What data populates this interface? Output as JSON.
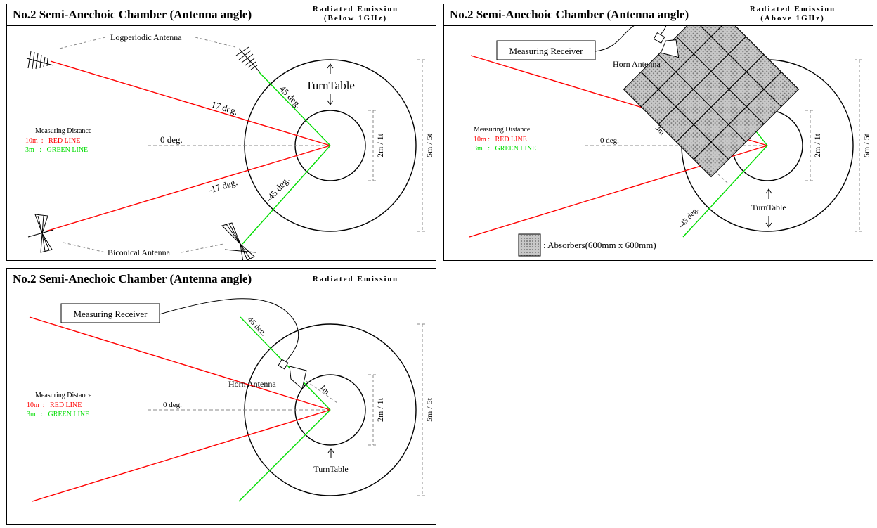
{
  "panels": [
    {
      "title": "No.2 Semi-Anechoic Chamber (Antenna angle)",
      "emission_line1": "Radiated Emission",
      "emission_line2": "(Below 1GHz)",
      "labels": {
        "logperiodic": "Logperiodic Antenna",
        "biconical": "Biconical Antenna",
        "turntable": "TurnTable",
        "distance_title": "Measuring Distance",
        "distance_red": "10m  :   RED LINE",
        "distance_green": "3m   :   GREEN LINE",
        "deg_17": "17 deg.",
        "deg_0": "0 deg.",
        "deg_m17": "-17 deg.",
        "deg_45": "45 deg.",
        "deg_m45": "-45 deg.",
        "dim_inner": "2m / 1t",
        "dim_outer": "5m / 5t"
      }
    },
    {
      "title": "No.2 Semi-Anechoic Chamber (Antenna angle)",
      "emission_line1": "Radiated Emission",
      "emission_line2": "(Above 1GHz)",
      "labels": {
        "receiver": "Measuring Receiver",
        "horn": "Horn Antenna",
        "turntable": "TurnTable",
        "distance_title": "Measuring Distance",
        "distance_red": "10m :   RED LINE",
        "distance_green": "3m   :   GREEN LINE",
        "deg_0": "0 deg.",
        "deg_m45": "-45 deg.",
        "dist_3m": "3m",
        "absorbers": ": Absorbers(600mm x 600mm)",
        "dim_inner": "2m / 1t",
        "dim_outer": "5m / 5t"
      }
    },
    {
      "title": "No.2 Semi-Anechoic Chamber (Antenna angle)",
      "emission_line1": "Radiated Emission",
      "labels": {
        "receiver": "Measuring Receiver",
        "horn": "Horn Antenna",
        "turntable": "TurnTable",
        "distance_title": "Measuring Distance",
        "distance_red": "10m  :   RED LINE",
        "distance_green": "3m   :   GREEN LINE",
        "deg_0": "0 deg.",
        "deg_45": "45 deg.",
        "dist_1m": "1m",
        "dim_inner": "2m / 1t",
        "dim_outer": "5m / 5t"
      }
    }
  ],
  "colors": {
    "red_line": "#ff0000",
    "green_line": "#00dd00",
    "grey_line": "#888888",
    "absorber": "#bbbbbb"
  }
}
